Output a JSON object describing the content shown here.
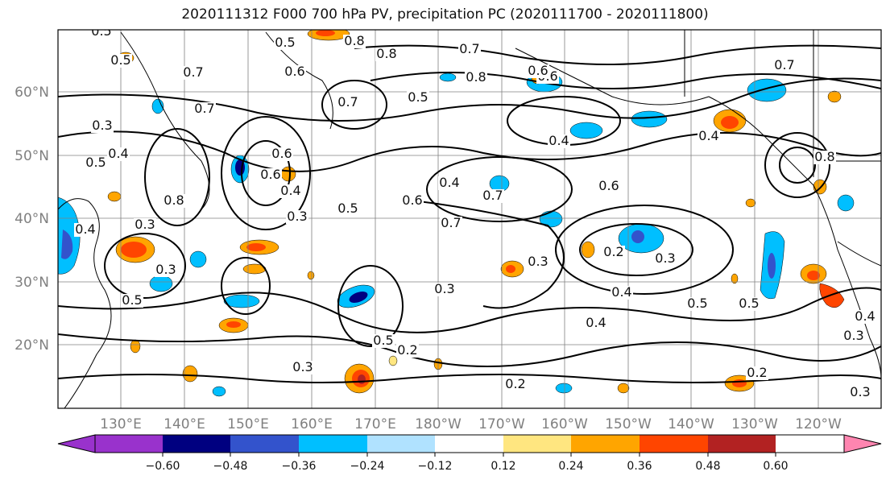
{
  "title": "2020111312 F000 700 hPa PV, precipitation PC (2020111700 - 2020111800)",
  "map": {
    "lon_labels": [
      "130°E",
      "140°E",
      "150°E",
      "160°E",
      "170°E",
      "180°W",
      "170°W",
      "160°W",
      "150°W",
      "140°W",
      "130°W",
      "120°W"
    ],
    "lat_labels": [
      "60°N",
      "50°N",
      "40°N",
      "30°N",
      "20°N"
    ],
    "contour_labels": [
      "0.5",
      "0.5",
      "0.7",
      "0.5",
      "0.6",
      "0.8",
      "0.7",
      "0.8",
      "0.8",
      "0.6",
      "0.5",
      "0.7",
      "0.3",
      "0.4",
      "0.5",
      "0.7",
      "0.6",
      "0.4",
      "0.3",
      "0.5",
      "0.6",
      "0.4",
      "0.7",
      "0.6",
      "0.7",
      "0.4",
      "0.8",
      "0.3",
      "0.4",
      "0.6",
      "0.6",
      "0.7",
      "0.8",
      "0.4",
      "0.2",
      "0.3",
      "0.3",
      "0.3",
      "0.5",
      "0.3",
      "0.4",
      "0.5",
      "0.5",
      "0.5",
      "0.2",
      "0.3",
      "0.4",
      "0.2",
      "0.4",
      "0.3",
      "0.2",
      "0.3"
    ],
    "colors": {
      "coast": "#000000",
      "grid": "#808080",
      "contour": "#000000"
    }
  },
  "colorbar": {
    "ticks": [
      "−0.60",
      "−0.48",
      "−0.36",
      "−0.24",
      "−0.12",
      "0.12",
      "0.24",
      "0.36",
      "0.48",
      "0.60"
    ],
    "colors": [
      "#9932CC",
      "#000080",
      "#3353CC",
      "#00BFFF",
      "#B0E2FF",
      "#FFFFFF",
      "#FFE680",
      "#FFA500",
      "#FF4500",
      "#B22222",
      "#FF85B0"
    ]
  }
}
